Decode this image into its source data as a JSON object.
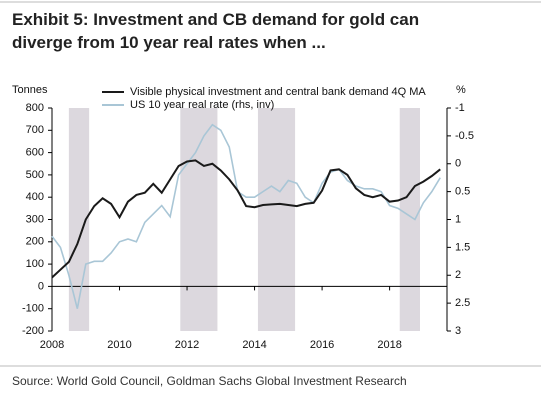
{
  "chart_data": {
    "type": "line",
    "title": "Exhibit 5: Investment and CB demand for gold can diverge from 10 year real rates when ...",
    "source": "Source: World Gold Council, Goldman Sachs Global Investment Research",
    "y_label": "Tonnes",
    "y2_label": "%",
    "x": [
      2008,
      2008.25,
      2008.5,
      2008.75,
      2009,
      2009.25,
      2009.5,
      2009.75,
      2010,
      2010.25,
      2010.5,
      2010.75,
      2011,
      2011.25,
      2011.5,
      2011.75,
      2012,
      2012.25,
      2012.5,
      2012.75,
      2013,
      2013.25,
      2013.5,
      2013.75,
      2014,
      2014.25,
      2014.5,
      2014.75,
      2015,
      2015.25,
      2015.5,
      2015.75,
      2016,
      2016.25,
      2016.5,
      2016.75,
      2017,
      2017.25,
      2017.5,
      2017.75,
      2018,
      2018.25,
      2018.5,
      2018.75,
      2019,
      2019.25,
      2019.5
    ],
    "series": [
      {
        "name": "Visible physical investment and central bank demand 4Q MA",
        "color": "#1a1a1a",
        "values": [
          40,
          75,
          110,
          190,
          300,
          360,
          395,
          370,
          310,
          380,
          410,
          420,
          460,
          420,
          480,
          540,
          560,
          565,
          540,
          550,
          520,
          480,
          430,
          360,
          355,
          365,
          368,
          370,
          365,
          360,
          370,
          375,
          430,
          520,
          525,
          500,
          440,
          410,
          400,
          410,
          380,
          385,
          400,
          450,
          470,
          495,
          525
        ]
      },
      {
        "name": "US 10 year real rate (rhs, inv)",
        "color": "#a9c6d6",
        "axis": "y2",
        "values": [
          1.3,
          1.5,
          2.0,
          2.6,
          1.8,
          1.75,
          1.75,
          1.6,
          1.4,
          1.35,
          1.4,
          1.05,
          0.9,
          0.75,
          0.95,
          0.2,
          0.0,
          -0.2,
          -0.5,
          -0.7,
          -0.6,
          -0.3,
          0.5,
          0.6,
          0.6,
          0.5,
          0.4,
          0.5,
          0.3,
          0.35,
          0.6,
          0.7,
          0.35,
          0.15,
          0.1,
          0.3,
          0.4,
          0.45,
          0.45,
          0.5,
          0.75,
          0.8,
          0.9,
          1.0,
          0.7,
          0.5,
          0.25
        ]
      }
    ],
    "shaded_ranges": [
      [
        2008.5,
        2009.1
      ],
      [
        2011.8,
        2012.9
      ],
      [
        2014.1,
        2015.2
      ],
      [
        2018.3,
        2018.9
      ]
    ],
    "shade_color": "#dcd8de",
    "xlim": [
      2008,
      2019.7
    ],
    "xticks": [
      2008,
      2010,
      2012,
      2014,
      2016,
      2018
    ],
    "ylim": [
      -200,
      800
    ],
    "yticks": [
      -200,
      -100,
      0,
      100,
      200,
      300,
      400,
      500,
      600,
      700,
      800
    ],
    "y2lim": [
      3,
      -1
    ],
    "y2ticks": [
      -1,
      -0.5,
      0,
      0.5,
      1,
      1.5,
      2,
      2.5,
      3
    ],
    "legend": "top-left"
  }
}
